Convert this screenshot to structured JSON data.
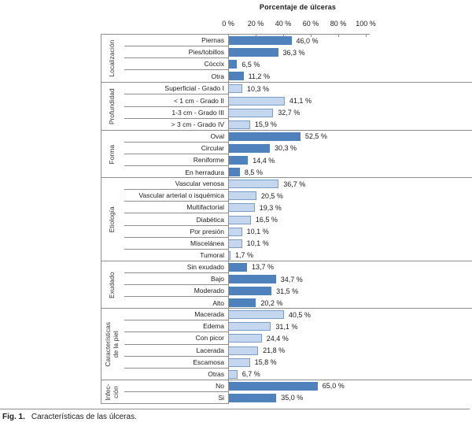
{
  "figure_caption": {
    "fig_label": "Fig. 1.",
    "text": "Características de las úlceras."
  },
  "chart_data": {
    "type": "bar",
    "orientation": "horizontal",
    "title": "Porcentaje de úlceras",
    "xlabel": "Porcentaje de úlceras",
    "xlim": [
      0,
      100
    ],
    "value_suffix": "%",
    "decimal_separator": ",",
    "grid": false,
    "legend": "none",
    "x_ticks": [
      {
        "label": "0 %",
        "value": 0
      },
      {
        "label": "20 %",
        "value": 20
      },
      {
        "label": "40 %",
        "value": 40
      },
      {
        "label": "60 %",
        "value": 60
      },
      {
        "label": "80 %",
        "value": 80
      },
      {
        "label": "100 %",
        "value": 100
      }
    ],
    "palette": {
      "dark_blue": "#4f81bd",
      "light_blue_fill": "#c5d7ee",
      "light_blue_border": "#7d9dc9",
      "line_gray": "#8f8f8f"
    },
    "groups": [
      {
        "name": "Localización",
        "bar_style": "dark",
        "items": [
          {
            "label": "Piernas",
            "value": 46.0,
            "display": "46,0 %"
          },
          {
            "label": "Pies/tobillos",
            "value": 36.3,
            "display": "36,3 %"
          },
          {
            "label": "Cóccix",
            "value": 6.5,
            "display": "6,5 %"
          },
          {
            "label": "Otra",
            "value": 11.2,
            "display": "11,2 %"
          }
        ]
      },
      {
        "name": "Profundidad",
        "bar_style": "light",
        "items": [
          {
            "label": "Superficial - Grado I",
            "value": 10.3,
            "display": "10,3 %"
          },
          {
            "label": "< 1 cm - Grado II",
            "value": 41.1,
            "display": "41,1 %"
          },
          {
            "label": "1-3 cm - Grado III",
            "value": 32.7,
            "display": "32,7 %"
          },
          {
            "label": "> 3 cm - Grado IV",
            "value": 15.9,
            "display": "15,9 %"
          }
        ]
      },
      {
        "name": "Forma",
        "bar_style": "dark",
        "items": [
          {
            "label": "Oval",
            "value": 52.5,
            "display": "52,5 %"
          },
          {
            "label": "Circular",
            "value": 30.3,
            "display": "30,3 %"
          },
          {
            "label": "Reniforme",
            "value": 14.4,
            "display": "14,4 %"
          },
          {
            "label": "En herradura",
            "value": 8.5,
            "display": "8,5 %"
          }
        ]
      },
      {
        "name": "Etiología",
        "bar_style": "light",
        "items": [
          {
            "label": "Vascular venosa",
            "value": 36.7,
            "display": "36,7 %"
          },
          {
            "label": "Vascular arterial o isquémica",
            "value": 20.5,
            "display": "20,5 %"
          },
          {
            "label": "Multifactorial",
            "value": 19.3,
            "display": "19,3 %"
          },
          {
            "label": "Diabética",
            "value": 16.5,
            "display": "16,5 %"
          },
          {
            "label": "Por presión",
            "value": 10.1,
            "display": "10,1 %"
          },
          {
            "label": "Miscelánea",
            "value": 10.1,
            "display": "10,1 %"
          },
          {
            "label": "Tumoral",
            "value": 1.7,
            "display": "1,7 %"
          }
        ]
      },
      {
        "name": "Exudado",
        "bar_style": "dark",
        "items": [
          {
            "label": "Sin exudado",
            "value": 13.7,
            "display": "13,7 %"
          },
          {
            "label": "Bajo",
            "value": 34.7,
            "display": "34,7 %"
          },
          {
            "label": "Moderado",
            "value": 31.5,
            "display": "31,5 %"
          },
          {
            "label": "Alto",
            "value": 20.2,
            "display": "20,2 %"
          }
        ]
      },
      {
        "name": "Características\nde la piel",
        "bar_style": "light",
        "items": [
          {
            "label": "Macerada",
            "value": 40.5,
            "display": "40,5 %"
          },
          {
            "label": "Edema",
            "value": 31.1,
            "display": "31,1 %"
          },
          {
            "label": "Con picor",
            "value": 24.4,
            "display": "24,4 %"
          },
          {
            "label": "Lacerada",
            "value": 21.8,
            "display": "21,8 %"
          },
          {
            "label": "Escamosa",
            "value": 15.8,
            "display": "15,8 %"
          },
          {
            "label": "Otras",
            "value": 6.7,
            "display": "6,7 %"
          }
        ]
      },
      {
        "name": "Infec-\nción",
        "bar_style": "dark",
        "items": [
          {
            "label": "No",
            "value": 65.0,
            "display": "65,0 %"
          },
          {
            "label": "Si",
            "value": 35.0,
            "display": "35,0 %"
          }
        ]
      }
    ]
  }
}
